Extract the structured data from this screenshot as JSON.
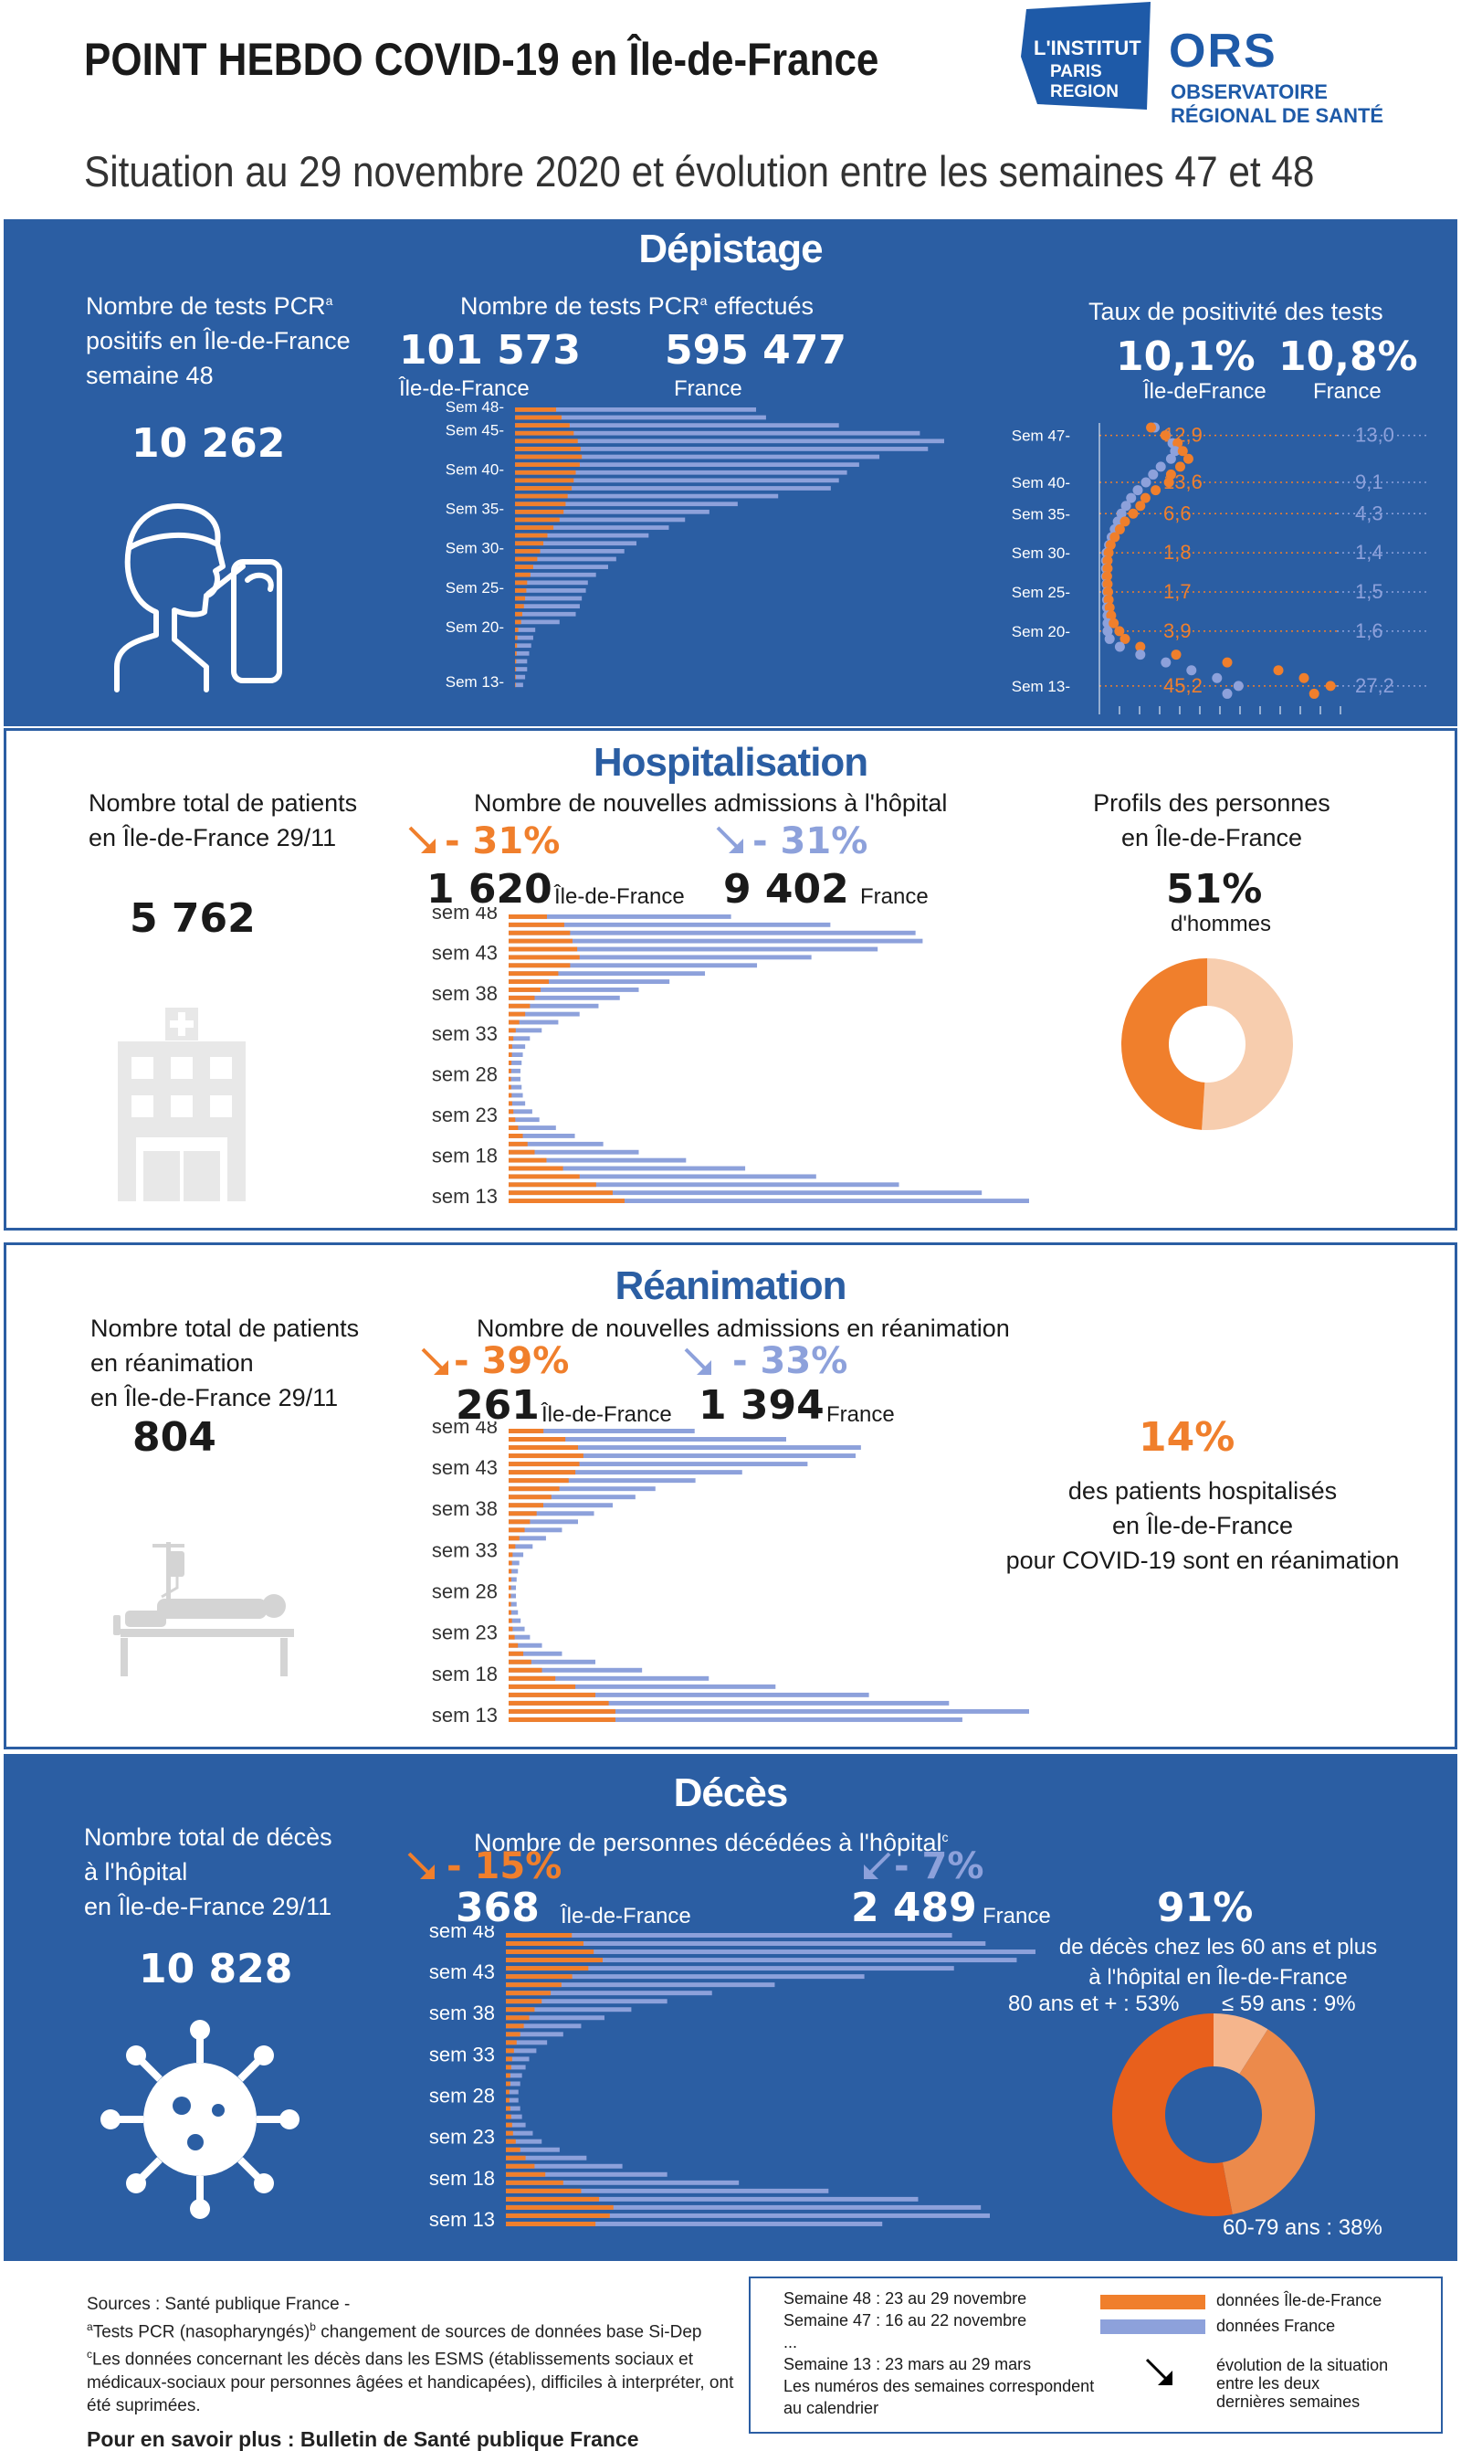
{
  "header": {
    "title": "POINT HEBDO COVID-19 en Île-de-France",
    "subtitle": "Situation au 29 novembre 2020 et évolution entre les semaines 47 et 48",
    "logo_line1": "L'INSTITUT",
    "logo_line2": "PARIS",
    "logo_line3": "REGION",
    "ors": "ORS",
    "ors_line1": "OBSERVATOIRE",
    "ors_line2": "RÉGIONAL DE SANTÉ"
  },
  "colors": {
    "idf": "#f07f2c",
    "france": "#8da1db",
    "blue": "#2b5ea3",
    "dark_orange": "#e8601c"
  },
  "depistage": {
    "title": "Dépistage",
    "left_label": [
      "Nombre de tests PCR",
      "a",
      "positifs en Île-de-France",
      "semaine 48"
    ],
    "left_value": "10 262",
    "mid_label": "Nombre de tests PCR",
    "mid_sup": "a",
    "mid_label2": " effectués",
    "idf_value": "101 573",
    "idf_label": "Île-de-France",
    "fr_value": "595 477",
    "fr_label": "France",
    "right_label": "Taux de positivité des tests",
    "idf_rate": "10,1%",
    "idf_rate_label": "Île-deFrance",
    "fr_rate": "10,8%",
    "fr_rate_label": "France"
  },
  "hospitalisation": {
    "title": "Hospitalisation",
    "left_label": [
      "Nombre total de patients",
      "en Île-de-France 29/11"
    ],
    "left_value": "5 762",
    "mid_label": "Nombre de nouvelles admissions à l'hôpital",
    "idf_change": "- 31%",
    "fr_change": "- 31%",
    "idf_value": "1 620",
    "idf_label": "Île-de-France",
    "fr_value": "9 402",
    "fr_label": "France",
    "right_label": [
      "Profils des personnes",
      "en Île-de-France"
    ],
    "men_pct": "51%",
    "men_label": "d'hommes"
  },
  "reanimation": {
    "title": "Réanimation",
    "left_label": [
      "Nombre total de patients",
      "en réanimation",
      "en Île-de-France 29/11"
    ],
    "left_value": "804",
    "mid_label": "Nombre de nouvelles admissions en réanimation",
    "idf_change": "- 39%",
    "fr_change": "- 33%",
    "idf_value": "261",
    "idf_label": "Île-de-France",
    "fr_value": "1 394",
    "fr_label": "France",
    "right_pct": "14%",
    "right_label": [
      "des patients hospitalisés",
      "en Île-de-France",
      "pour COVID-19 sont en réanimation"
    ]
  },
  "deces": {
    "title": "Décès",
    "left_label": [
      "Nombre total de décès",
      "à l'hôpital",
      "en Île-de-France 29/11"
    ],
    "left_value": "10 828",
    "mid_label": "Nombre de personnes décédées à l'hôpital",
    "mid_sup": "c",
    "idf_change": "- 15%",
    "fr_change": "- 7%",
    "idf_value": "368",
    "idf_label": "Île-de-France",
    "fr_value": "2 489",
    "fr_label": "France",
    "right_pct": "91%",
    "right_label": [
      "de décès chez les 60 ans et plus",
      "à l'hôpital en Île-de-France"
    ],
    "lbl_80": "80 ans et + : 53%",
    "lbl_59": "≤ 59 ans : 9%",
    "lbl_6079": "60-79 ans : 38%"
  },
  "footer": {
    "sources": "Sources : Santé publique France -",
    "note_a": "Tests PCR (nasopharyngés)",
    "note_b": " changement de sources de données base Si-Dep",
    "note_c1": "Les données concernant les décès dans les ESMS  (établissements sociaux et",
    "note_c2": "médicaux-sociaux pour personnes âgées et handicapées), difficiles à interpréter, ont été suprimées.",
    "more": "Pour en savoir plus : Bulletin de Santé publique France",
    "weeks": [
      "Semaine 48 : 23 au 29 novembre",
      "Semaine 47 : 16 au 22 novembre",
      "...",
      "Semaine 13 : 23 mars au 29 mars",
      "Les numéros des semaines correspondent",
      "au calendrier"
    ],
    "legend_idf": "données Île-de-France",
    "legend_fr": "données France",
    "legend_arrow": [
      "évolution de la situation",
      "entre les deux",
      "dernières semaines"
    ]
  },
  "chart_data": [
    {
      "id": "tests",
      "type": "bar",
      "title": "Nombre de tests PCR effectués",
      "categories": [
        "Sem 48",
        "47",
        "46",
        "45",
        "44",
        "43",
        "42",
        "41",
        "40",
        "39",
        "38",
        "37",
        "36",
        "35",
        "34",
        "33",
        "32",
        "31",
        "30",
        "29",
        "28",
        "27",
        "26",
        "25",
        "24",
        "23",
        "22",
        "21",
        "20",
        "19",
        "18",
        "17",
        "16",
        "15",
        "14",
        "13"
      ],
      "tick_labels": [
        "Sem 48-",
        "Sem 45-",
        "Sem 40-",
        "Sem 35-",
        "Sem 30-",
        "Sem 25-",
        "Sem 20-",
        "Sem 13-"
      ],
      "series": [
        {
          "name": "Île-de-France",
          "values": [
            101573,
            115000,
            135000,
            145000,
            155000,
            162000,
            165000,
            160000,
            150000,
            145000,
            140000,
            130000,
            125000,
            120000,
            110000,
            95000,
            80000,
            70000,
            62000,
            55000,
            45000,
            38000,
            30000,
            28000,
            25000,
            22000,
            18000,
            15000,
            8000,
            6000,
            5000,
            4000,
            3000,
            2500,
            2000,
            1500
          ]
        },
        {
          "name": "France",
          "values": [
            595477,
            620000,
            800000,
            1000000,
            1060000,
            1020000,
            900000,
            850000,
            820000,
            800000,
            780000,
            650000,
            550000,
            480000,
            420000,
            380000,
            330000,
            300000,
            270000,
            250000,
            230000,
            200000,
            180000,
            175000,
            165000,
            160000,
            150000,
            110000,
            50000,
            45000,
            40000,
            35000,
            30000,
            30000,
            25000,
            20000
          ]
        }
      ]
    },
    {
      "id": "positivity",
      "type": "scatter",
      "title": "Taux de positivité des tests",
      "tick_labels": [
        "Sem 47-",
        "Sem 40-",
        "Sem 35-",
        "Sem 30-",
        "Sem 25-",
        "Sem 20-",
        "Sem 13-"
      ],
      "idf_labels": [
        "12,9",
        "13,6",
        "6,6",
        "1,8",
        "1,7",
        "3,9",
        "45,2"
      ],
      "fr_labels": [
        "13,0",
        "9,1",
        "4,3",
        "1,4",
        "1,5",
        "1,6",
        "27,2"
      ],
      "series": [
        {
          "name": "Île-de-France",
          "values": [
            10.1,
            12.9,
            15.3,
            16.3,
            17.4,
            15.8,
            14.0,
            13.6,
            11.0,
            9.0,
            8.0,
            6.6,
            5.0,
            4.0,
            3.0,
            2.2,
            1.8,
            1.6,
            1.6,
            1.5,
            1.6,
            1.7,
            1.8,
            2.0,
            2.3,
            2.8,
            3.9,
            5.0,
            8.0,
            15.0,
            25.0,
            35.0,
            40.0,
            45.2,
            42.0
          ]
        },
        {
          "name": "France",
          "values": [
            10.8,
            13.0,
            14.3,
            14.8,
            14.0,
            12.0,
            10.5,
            9.1,
            7.5,
            6.2,
            5.2,
            4.3,
            3.6,
            3.0,
            2.4,
            1.9,
            1.4,
            1.3,
            1.3,
            1.3,
            1.4,
            1.5,
            1.5,
            1.5,
            1.6,
            1.6,
            1.6,
            2.0,
            4.0,
            8.0,
            13.0,
            18.0,
            23.0,
            27.2,
            25.0
          ]
        }
      ]
    },
    {
      "id": "hospitalisations",
      "type": "bar",
      "title": "Nombre de nouvelles admissions à l'hôpital",
      "categories": [
        "sem 48",
        "47",
        "46",
        "45",
        "44",
        "43",
        "42",
        "41",
        "40",
        "39",
        "38",
        "37",
        "36",
        "35",
        "34",
        "33",
        "32",
        "31",
        "30",
        "29",
        "28",
        "27",
        "26",
        "25",
        "24",
        "23",
        "22",
        "21",
        "20",
        "19",
        "18",
        "17",
        "16",
        "15",
        "14",
        "13"
      ],
      "tick_labels": [
        "sem 48",
        "sem 43",
        "sem 38",
        "sem 33",
        "sem 28",
        "sem 23",
        "sem 18",
        "sem 13"
      ],
      "series": [
        {
          "name": "Île-de-France",
          "values": [
            1620,
            2350,
            2600,
            2700,
            2900,
            3000,
            2600,
            2100,
            1700,
            1350,
            1100,
            900,
            700,
            450,
            300,
            200,
            150,
            140,
            120,
            110,
            100,
            110,
            130,
            150,
            200,
            280,
            400,
            600,
            800,
            1100,
            1600,
            2300,
            3000,
            3700,
            4400,
            4900
          ]
        },
        {
          "name": "France",
          "values": [
            9402,
            13600,
            17200,
            17500,
            15600,
            12800,
            10500,
            8300,
            6800,
            5500,
            4700,
            3800,
            3000,
            2100,
            1400,
            900,
            700,
            600,
            550,
            500,
            500,
            550,
            600,
            700,
            1000,
            1300,
            2000,
            2800,
            4000,
            5500,
            7500,
            10000,
            13000,
            16500,
            20000,
            22000
          ]
        }
      ]
    },
    {
      "id": "reanimation",
      "type": "bar",
      "title": "Nombre de nouvelles admissions en réanimation",
      "categories": [
        "sem 48",
        "47",
        "46",
        "45",
        "44",
        "43",
        "42",
        "41",
        "40",
        "39",
        "38",
        "37",
        "36",
        "35",
        "34",
        "33",
        "32",
        "31",
        "30",
        "29",
        "28",
        "27",
        "26",
        "25",
        "24",
        "23",
        "22",
        "21",
        "20",
        "19",
        "18",
        "17",
        "16",
        "15",
        "14",
        "13"
      ],
      "tick_labels": [
        "sem 48",
        "sem 43",
        "sem 38",
        "sem 33",
        "sem 28",
        "sem 23",
        "sem 18",
        "sem 13"
      ],
      "series": [
        {
          "name": "Île-de-France",
          "values": [
            261,
            425,
            520,
            560,
            530,
            500,
            450,
            380,
            320,
            260,
            210,
            160,
            120,
            80,
            50,
            30,
            25,
            22,
            20,
            18,
            17,
            18,
            20,
            25,
            30,
            45,
            70,
            110,
            170,
            250,
            350,
            500,
            650,
            750,
            800,
            800
          ]
        },
        {
          "name": "France",
          "values": [
            1394,
            2080,
            2640,
            2600,
            2240,
            1750,
            1400,
            1100,
            950,
            780,
            640,
            520,
            400,
            280,
            180,
            110,
            80,
            70,
            60,
            55,
            55,
            60,
            70,
            90,
            120,
            160,
            250,
            400,
            650,
            1000,
            1500,
            2000,
            2700,
            3300,
            3900,
            3400
          ]
        }
      ]
    },
    {
      "id": "deces",
      "type": "bar",
      "title": "Nombre de personnes décédées à l'hôpital",
      "categories": [
        "sem 48",
        "47",
        "46",
        "45",
        "44",
        "43",
        "42",
        "41",
        "40",
        "39",
        "38",
        "37",
        "36",
        "35",
        "34",
        "33",
        "32",
        "31",
        "30",
        "29",
        "28",
        "27",
        "26",
        "25",
        "24",
        "23",
        "22",
        "21",
        "20",
        "19",
        "18",
        "17",
        "16",
        "15",
        "14",
        "13"
      ],
      "tick_labels": [
        "sem 48",
        "sem 43",
        "sem 38",
        "sem 33",
        "sem 28",
        "sem 23",
        "sem 18",
        "sem 13"
      ],
      "series": [
        {
          "name": "Île-de-France",
          "values": [
            368,
            433,
            490,
            540,
            460,
            370,
            310,
            250,
            200,
            160,
            130,
            100,
            80,
            60,
            45,
            35,
            30,
            25,
            25,
            20,
            20,
            25,
            30,
            35,
            40,
            55,
            80,
            110,
            160,
            220,
            320,
            420,
            520,
            600,
            580,
            500
          ]
        },
        {
          "name": "France",
          "values": [
            2489,
            2676,
            3010,
            2850,
            2500,
            2000,
            1500,
            1150,
            900,
            700,
            550,
            420,
            320,
            230,
            170,
            130,
            110,
            90,
            80,
            70,
            70,
            80,
            90,
            110,
            150,
            200,
            300,
            450,
            650,
            900,
            1300,
            1800,
            2300,
            2650,
            2700,
            2100
          ]
        }
      ]
    },
    {
      "id": "sexe",
      "type": "pie",
      "title": "Profils des personnes en Île-de-France",
      "values": [
        51,
        49
      ],
      "colors": [
        "#f7cdae",
        "#f07f2c"
      ]
    },
    {
      "id": "age_deces",
      "type": "pie",
      "values": [
        9,
        38,
        53
      ],
      "colors": [
        "#f5b58c",
        "#ec8a4b",
        "#e8601c"
      ]
    }
  ]
}
